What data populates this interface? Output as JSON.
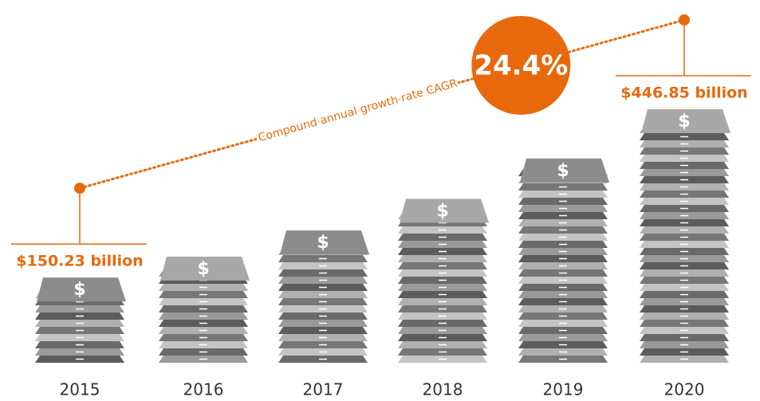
{
  "chart_data": {
    "type": "money-stack",
    "categories": [
      "2015",
      "2016",
      "2017",
      "2018",
      "2019",
      "2020"
    ],
    "values": [
      150.23,
      187,
      233,
      289,
      360,
      446.85
    ],
    "value_labels": [
      "$150.23 billion",
      null,
      null,
      null,
      null,
      "$446.85 billion"
    ],
    "stack_symbol": "$",
    "color": "#e8690c",
    "annotations": {
      "cagr": "24.4%",
      "cagr_label": "Compound annual growth rate CAGR"
    }
  }
}
